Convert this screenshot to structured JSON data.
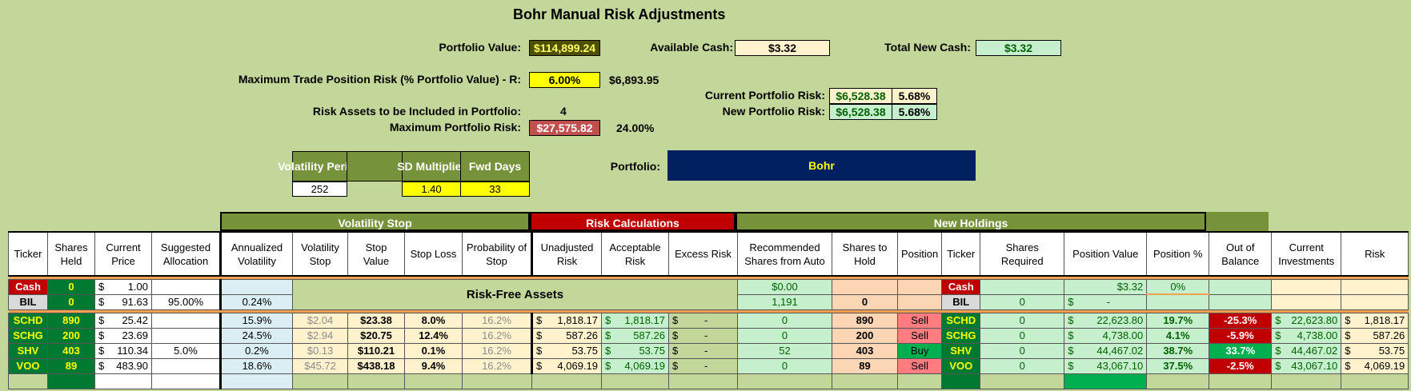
{
  "title": "Bohr Manual Risk Adjustments",
  "summary": {
    "portfolio_value_label": "Portfolio Value:",
    "portfolio_value": "$114,899.24",
    "available_cash_label": "Available Cash:",
    "available_cash": "$3.32",
    "total_new_cash_label": "Total New Cash:",
    "total_new_cash": "$3.32",
    "max_trade_risk_label": "Maximum Trade Position Risk (% Portfolio Value) - R:",
    "max_trade_risk_pct": "6.00%",
    "max_trade_risk_value": "$6,893.95",
    "current_portfolio_risk_label": "Current Portfolio Risk:",
    "current_portfolio_risk": "$6,528.38",
    "current_portfolio_risk_pct": "5.68%",
    "new_portfolio_risk_label": "New Portfolio Risk:",
    "new_portfolio_risk": "$6,528.38",
    "new_portfolio_risk_pct": "5.68%",
    "risk_assets_label": "Risk Assets to be Included in Portfolio:",
    "risk_assets": "4",
    "max_portfolio_risk_label": "Maximum Portfolio Risk:",
    "max_portfolio_risk": "$27,575.82",
    "max_portfolio_risk_pct": "24.00%",
    "portfolio_label": "Portfolio:",
    "portfolio_name": "Bohr"
  },
  "params": {
    "vol_period_label": "Volatility Period",
    "vol_period": "252",
    "sd_mult_label": "SD Multiplier",
    "sd_mult": "1.40",
    "fwd_days_label": "Fwd Days",
    "fwd_days": "33"
  },
  "groups": {
    "volatility_stop": "Volatility Stop",
    "risk_calculations": "Risk Calculations",
    "new_holdings": "New Holdings"
  },
  "headers": [
    "Ticker",
    "Shares Held",
    "Current Price",
    "Suggested Allocation",
    "Annualized Volatility",
    "Volatility Stop",
    "Stop Value",
    "Stop Loss",
    "Probability of Stop",
    "Unadjusted Risk",
    "Acceptable Risk",
    "Excess Risk",
    "Recommended Shares from Auto",
    "Shares to Hold",
    "Position",
    "Ticker",
    "Shares Required",
    "Position Value",
    "Position %",
    "Out of Balance",
    "Current Investments",
    "Risk"
  ],
  "risk_free_label": "Risk-Free Assets",
  "cash_row": {
    "ticker": "Cash",
    "shares": "0",
    "price": "1.00",
    "rec": "$0.00",
    "ticker2": "Cash",
    "pos_value": "$3.32",
    "pos_pct": "0%"
  },
  "bil_row": {
    "ticker": "BIL",
    "shares": "0",
    "price": "91.63",
    "alloc": "95.00%",
    "vol": "0.24%",
    "rec": "1,191",
    "hold": "0",
    "ticker2": "BIL",
    "req": "0",
    "pos_value": "-"
  },
  "rows": [
    {
      "ticker": "SCHD",
      "shares": "890",
      "price": "25.42",
      "alloc": "",
      "vol": "15.9%",
      "vstop": "$2.04",
      "stop_value": "$23.38",
      "stop_loss": "8.0%",
      "prob": "16.2%",
      "unadj": "1,818.17",
      "accept": "1,818.17",
      "excess": "-",
      "rec": "0",
      "hold": "890",
      "position": "Sell",
      "req": "0",
      "pos_value": "22,623.80",
      "pos_pct": "19.7%",
      "oob": "-25.3%",
      "cur_inv": "22,623.80",
      "risk": "1,818.17"
    },
    {
      "ticker": "SCHG",
      "shares": "200",
      "price": "23.69",
      "alloc": "",
      "vol": "24.5%",
      "vstop": "$2.94",
      "stop_value": "$20.75",
      "stop_loss": "12.4%",
      "prob": "16.2%",
      "unadj": "587.26",
      "accept": "587.26",
      "excess": "-",
      "rec": "0",
      "hold": "200",
      "position": "Sell",
      "req": "0",
      "pos_value": "4,738.00",
      "pos_pct": "4.1%",
      "oob": "-5.9%",
      "cur_inv": "4,738.00",
      "risk": "587.26"
    },
    {
      "ticker": "SHV",
      "shares": "403",
      "price": "110.34",
      "alloc": "5.0%",
      "vol": "0.2%",
      "vstop": "$0.13",
      "stop_value": "$110.21",
      "stop_loss": "0.1%",
      "prob": "16.2%",
      "unadj": "53.75",
      "accept": "53.75",
      "excess": "-",
      "rec": "52",
      "hold": "403",
      "position": "Buy",
      "req": "0",
      "pos_value": "44,467.02",
      "pos_pct": "38.7%",
      "oob": "33.7%",
      "cur_inv": "44,467.02",
      "risk": "53.75"
    },
    {
      "ticker": "VOO",
      "shares": "89",
      "price": "483.90",
      "alloc": "",
      "vol": "18.6%",
      "vstop": "$45.72",
      "stop_value": "$438.18",
      "stop_loss": "9.4%",
      "prob": "16.2%",
      "unadj": "4,069.19",
      "accept": "4,069.19",
      "excess": "-",
      "rec": "0",
      "hold": "89",
      "position": "Sell",
      "req": "0",
      "pos_value": "43,067.10",
      "pos_pct": "37.5%",
      "oob": "-2.5%",
      "cur_inv": "43,067.10",
      "risk": "4,069.19"
    }
  ]
}
